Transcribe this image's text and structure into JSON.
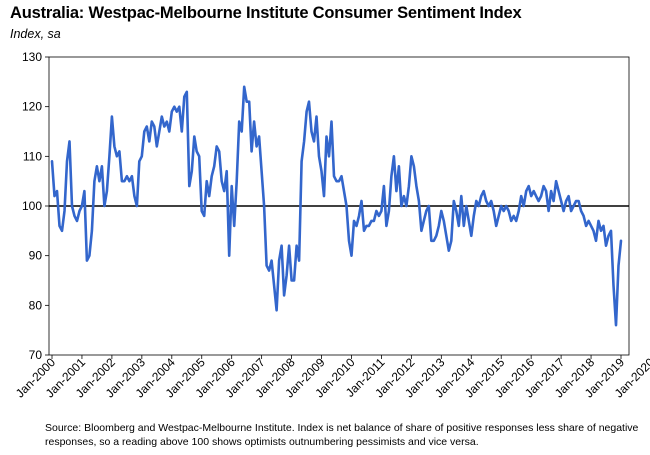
{
  "title": "Australia: Westpac-Melbourne Institute Consumer Sentiment Index",
  "subtitle": "Index, sa",
  "source": "Source: Bloomberg and Westpac-Melbourne Institute.  Index is net balance of share of positive responses less share of negative responses, so a reading above 100 shows optimists outnumbering pessimists and vice versa.",
  "chart_data": {
    "type": "line",
    "title": "Australia: Westpac-Melbourne Institute Consumer Sentiment Index",
    "ylabel": "Index, sa",
    "ylim": [
      70,
      130
    ],
    "yticks": [
      70,
      80,
      90,
      100,
      110,
      120,
      130
    ],
    "reference_line": 100,
    "x_start": "2000-01",
    "x_end": "2020-07",
    "xticks": [
      "Jan-2000",
      "Jan-2001",
      "Jan-2002",
      "Jan-2003",
      "Jan-2004",
      "Jan-2005",
      "Jan-2006",
      "Jan-2007",
      "Jan-2008",
      "Jan-2009",
      "Jan-2010",
      "Jan-2011",
      "Jan-2012",
      "Jan-2013",
      "Jan-2014",
      "Jan-2015",
      "Jan-2016",
      "Jan-2017",
      "Jan-2018",
      "Jan-2019",
      "Jan-2020"
    ],
    "series": [
      {
        "name": "Consumer Sentiment Index",
        "color": "#3366cc",
        "values": [
          109,
          102,
          103,
          96,
          95,
          99,
          109,
          113,
          100,
          98,
          97,
          99,
          100,
          103,
          89,
          90,
          95,
          105,
          108,
          105,
          108,
          100,
          103,
          110,
          118,
          112,
          110,
          111,
          105,
          105,
          106,
          105,
          106,
          102,
          100,
          109,
          110,
          115,
          116,
          113,
          117,
          116,
          112,
          115,
          118,
          116,
          117,
          115,
          119,
          120,
          119,
          120,
          115,
          122,
          123,
          104,
          107,
          114,
          111,
          110,
          99,
          98,
          105,
          102,
          106,
          108,
          112,
          111,
          105,
          103,
          107,
          90,
          104,
          96,
          105,
          117,
          115,
          124,
          121,
          121,
          111,
          117,
          112,
          114,
          107,
          100,
          88,
          87,
          89,
          84,
          79,
          89,
          92,
          82,
          86,
          92,
          85,
          85,
          92,
          89,
          109,
          113,
          119,
          121,
          115,
          113,
          118,
          110,
          107,
          102,
          114,
          110,
          117,
          106,
          105,
          105,
          106,
          103,
          100,
          93,
          90,
          97,
          96,
          98,
          101,
          95,
          96,
          96,
          97,
          97,
          99,
          98,
          99,
          104,
          96,
          99,
          106,
          110,
          103,
          108,
          100,
          102,
          100,
          104,
          110,
          108,
          104,
          101,
          95,
          97,
          99,
          100,
          93,
          93,
          94,
          96,
          99,
          97,
          94,
          91,
          93,
          101,
          99,
          96,
          102,
          96,
          100,
          97,
          94,
          98,
          101,
          100,
          102,
          103,
          101,
          100,
          101,
          99,
          96,
          98,
          100,
          99,
          100,
          99,
          97,
          98,
          97,
          99,
          102,
          100,
          103,
          104,
          102,
          103,
          102,
          101,
          102,
          104,
          103,
          99,
          103,
          101,
          105,
          103,
          101,
          99,
          101,
          102,
          99,
          100,
          101,
          101,
          99,
          98,
          96,
          97,
          96,
          95,
          93,
          97,
          95,
          96,
          92,
          94,
          95,
          84,
          76,
          88,
          93
        ]
      }
    ]
  }
}
